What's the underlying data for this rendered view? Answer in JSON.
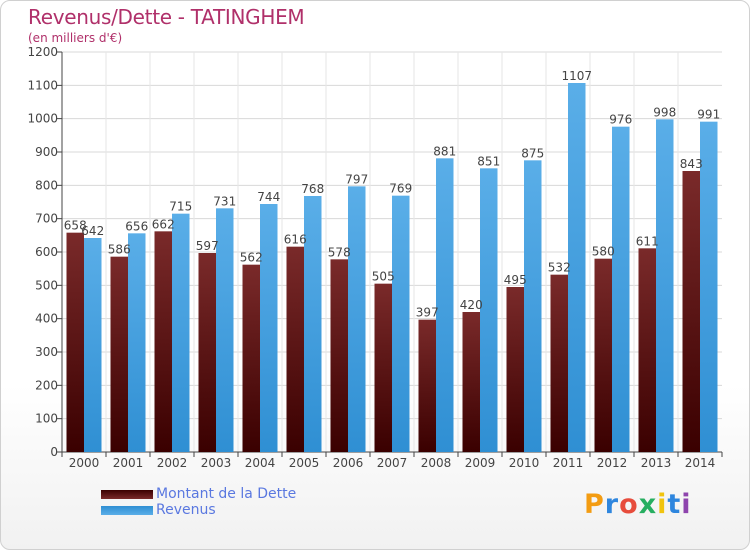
{
  "header": {
    "title": "Revenus/Dette - TATINGHEM",
    "subtitle": "(en milliers d'€)"
  },
  "legend": {
    "debt_label": "Montant de la Dette",
    "revenue_label": "Revenus"
  },
  "brand": {
    "letters": [
      "P",
      "r",
      "o",
      "x",
      "i",
      "t",
      "i"
    ],
    "colors": [
      "#f39c12",
      "#2e86de",
      "#e74c3c",
      "#27ae60",
      "#f1c40f",
      "#2e86de",
      "#8e44ad"
    ]
  },
  "colors": {
    "debt_top": "#7a2a2a",
    "debt_bottom": "#3a0000",
    "revenue_top": "#5aaee8",
    "revenue_bottom": "#2f8fd3",
    "title": "#b0306a",
    "legend_text": "#5a78e0"
  },
  "chart_data": {
    "type": "bar",
    "title": "Revenus/Dette - TATINGHEM",
    "subtitle": "(en milliers d'€)",
    "xlabel": "",
    "ylabel": "",
    "categories": [
      "2000",
      "2001",
      "2002",
      "2003",
      "2004",
      "2005",
      "2006",
      "2007",
      "2008",
      "2009",
      "2010",
      "2011",
      "2012",
      "2013",
      "2014"
    ],
    "series": [
      {
        "name": "Montant de la Dette",
        "values": [
          658,
          586,
          662,
          597,
          562,
          616,
          578,
          505,
          397,
          420,
          495,
          532,
          580,
          611,
          843
        ]
      },
      {
        "name": "Revenus",
        "values": [
          642,
          656,
          715,
          731,
          744,
          768,
          797,
          769,
          881,
          851,
          875,
          1107,
          976,
          998,
          991
        ]
      }
    ],
    "ylim": [
      0,
      1200
    ],
    "yticks": [
      0,
      100,
      200,
      300,
      400,
      500,
      600,
      700,
      800,
      900,
      1000,
      1100,
      1200
    ],
    "grid": true,
    "legend_position": "bottom-left"
  }
}
